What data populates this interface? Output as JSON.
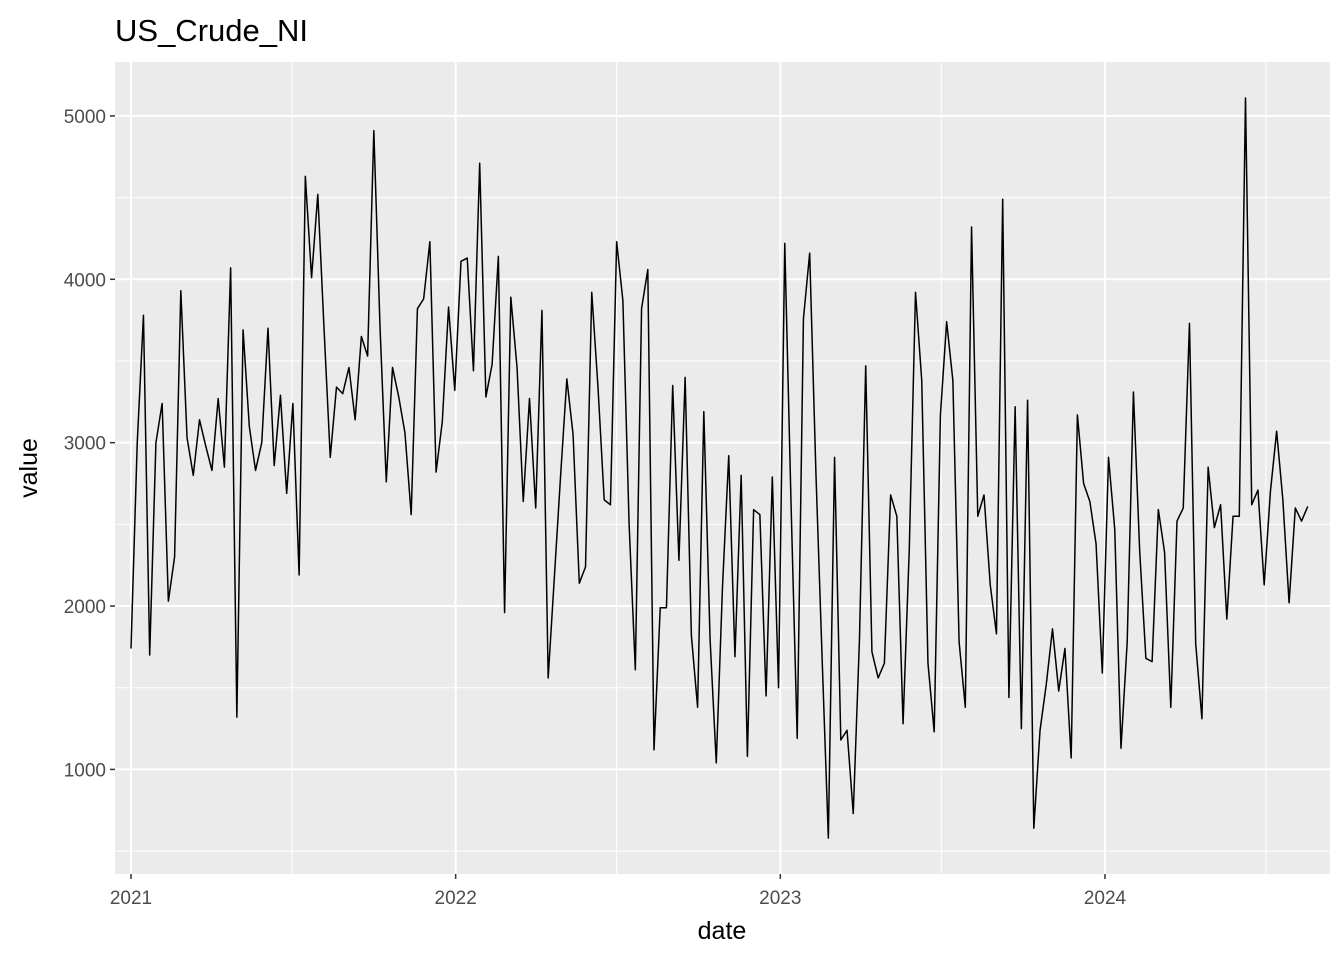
{
  "chart_data": {
    "type": "line",
    "title": "US_Crude_NI",
    "xlabel": "date",
    "ylabel": "value",
    "x_ticks": [
      "2021",
      "2022",
      "2023",
      "2024"
    ],
    "y_ticks": [
      1000,
      2000,
      3000,
      4000,
      5000
    ],
    "x_range": [
      "2020-12-14",
      "2024-09-10"
    ],
    "ylim": [
      360,
      5330
    ],
    "grid": true,
    "panel_background": "#ebebeb",
    "grid_color": "#ffffff",
    "line_color": "#000000",
    "series": [
      {
        "x": [
          "2021-01-01",
          "2021-01-08",
          "2021-01-15",
          "2021-01-22",
          "2021-01-29",
          "2021-02-05",
          "2021-02-12",
          "2021-02-19",
          "2021-02-26",
          "2021-03-05",
          "2021-03-12",
          "2021-03-19",
          "2021-03-26",
          "2021-04-02",
          "2021-04-09",
          "2021-04-16",
          "2021-04-23",
          "2021-04-30",
          "2021-05-07",
          "2021-05-14",
          "2021-05-21",
          "2021-05-28",
          "2021-06-04",
          "2021-06-11",
          "2021-06-18",
          "2021-06-25",
          "2021-07-02",
          "2021-07-09",
          "2021-07-16",
          "2021-07-23",
          "2021-07-30",
          "2021-08-06",
          "2021-08-13",
          "2021-08-20",
          "2021-08-27",
          "2021-09-03",
          "2021-09-10",
          "2021-09-17",
          "2021-09-24",
          "2021-10-01",
          "2021-10-08",
          "2021-10-15",
          "2021-10-22",
          "2021-10-29",
          "2021-11-05",
          "2021-11-12",
          "2021-11-19",
          "2021-11-26",
          "2021-12-03",
          "2021-12-10",
          "2021-12-17",
          "2021-12-24",
          "2021-12-31",
          "2022-01-07",
          "2022-01-14",
          "2022-01-21",
          "2022-01-28",
          "2022-02-04",
          "2022-02-11",
          "2022-02-18",
          "2022-02-25",
          "2022-03-04",
          "2022-03-11",
          "2022-03-18",
          "2022-03-25",
          "2022-04-01",
          "2022-04-08",
          "2022-04-15",
          "2022-04-22",
          "2022-04-29",
          "2022-05-06",
          "2022-05-13",
          "2022-05-20",
          "2022-05-27",
          "2022-06-03",
          "2022-06-10",
          "2022-06-17",
          "2022-06-24",
          "2022-07-01",
          "2022-07-08",
          "2022-07-15",
          "2022-07-22",
          "2022-07-29",
          "2022-08-05",
          "2022-08-12",
          "2022-08-19",
          "2022-08-26",
          "2022-09-02",
          "2022-09-09",
          "2022-09-16",
          "2022-09-23",
          "2022-09-30",
          "2022-10-07",
          "2022-10-14",
          "2022-10-21",
          "2022-10-28",
          "2022-11-04",
          "2022-11-11",
          "2022-11-18",
          "2022-11-25",
          "2022-12-02",
          "2022-12-09",
          "2022-12-16",
          "2022-12-23",
          "2022-12-30",
          "2023-01-06",
          "2023-01-13",
          "2023-01-20",
          "2023-01-27",
          "2023-02-03",
          "2023-02-10",
          "2023-02-17",
          "2023-02-24",
          "2023-03-03",
          "2023-03-10",
          "2023-03-17",
          "2023-03-24",
          "2023-03-31",
          "2023-04-07",
          "2023-04-14",
          "2023-04-21",
          "2023-04-28",
          "2023-05-05",
          "2023-05-12",
          "2023-05-19",
          "2023-05-26",
          "2023-06-02",
          "2023-06-09",
          "2023-06-16",
          "2023-06-23",
          "2023-06-30",
          "2023-07-07",
          "2023-07-14",
          "2023-07-21",
          "2023-07-28",
          "2023-08-04",
          "2023-08-11",
          "2023-08-18",
          "2023-08-25",
          "2023-09-01",
          "2023-09-08",
          "2023-09-15",
          "2023-09-22",
          "2023-09-29",
          "2023-10-06",
          "2023-10-13",
          "2023-10-20",
          "2023-10-27",
          "2023-11-03",
          "2023-11-10",
          "2023-11-17",
          "2023-11-24",
          "2023-12-01",
          "2023-12-08",
          "2023-12-15",
          "2023-12-22",
          "2023-12-29",
          "2024-01-05",
          "2024-01-12",
          "2024-01-19",
          "2024-01-26",
          "2024-02-02",
          "2024-02-09",
          "2024-02-16",
          "2024-02-23",
          "2024-03-01",
          "2024-03-08",
          "2024-03-15",
          "2024-03-22",
          "2024-03-29",
          "2024-04-05",
          "2024-04-12",
          "2024-04-19",
          "2024-04-26",
          "2024-05-03",
          "2024-05-10",
          "2024-05-17",
          "2024-05-24",
          "2024-05-31",
          "2024-06-07",
          "2024-06-14",
          "2024-06-21",
          "2024-06-28",
          "2024-07-05",
          "2024-07-12",
          "2024-07-19",
          "2024-07-26",
          "2024-08-02",
          "2024-08-09",
          "2024-08-16"
        ],
        "y": [
          1740,
          3000,
          3780,
          1700,
          3000,
          3240,
          2030,
          2300,
          3930,
          3030,
          2800,
          3140,
          2980,
          2830,
          3270,
          2850,
          4070,
          1320,
          3690,
          3100,
          2830,
          3000,
          3700,
          2860,
          3290,
          2690,
          3240,
          2190,
          4630,
          4010,
          4520,
          3700,
          2910,
          3340,
          3300,
          3460,
          3140,
          3650,
          3530,
          4910,
          3700,
          2760,
          3460,
          3280,
          3060,
          2560,
          3820,
          3880,
          4230,
          2820,
          3130,
          3830,
          3320,
          4110,
          4130,
          3440,
          4710,
          3280,
          3480,
          4140,
          1960,
          3890,
          3460,
          2640,
          3270,
          2600,
          3810,
          1560,
          2180,
          2800,
          3390,
          3050,
          2140,
          2240,
          3920,
          3340,
          2650,
          2620,
          4230,
          3870,
          2500,
          1610,
          3820,
          4060,
          1120,
          1990,
          1990,
          3350,
          2280,
          3400,
          1820,
          1380,
          3190,
          1800,
          1040,
          2120,
          2920,
          1690,
          2800,
          1080,
          2590,
          2560,
          1450,
          2790,
          1500,
          4220,
          2640,
          1190,
          3760,
          4160,
          2820,
          1680,
          580,
          2910,
          1180,
          1240,
          730,
          1800,
          3470,
          1720,
          1560,
          1650,
          2680,
          2550,
          1280,
          2350,
          3920,
          3380,
          1650,
          1230,
          3170,
          3740,
          3380,
          1780,
          1380,
          4320,
          2550,
          2680,
          2130,
          1830,
          4490,
          1440,
          3220,
          1250,
          3260,
          640,
          1240,
          1520,
          1860,
          1480,
          1740,
          1070,
          3170,
          2750,
          2640,
          2380,
          1590,
          2910,
          2470,
          1130,
          1780,
          3310,
          2340,
          1680,
          1660,
          2590,
          2330,
          1380,
          2520,
          2600,
          3730,
          1770,
          1310,
          2850,
          2480,
          2620,
          1920,
          2550,
          2550,
          5110,
          2620,
          2710,
          2130,
          2700,
          3070,
          2650,
          2020,
          2600,
          2520,
          2610
        ]
      }
    ]
  }
}
